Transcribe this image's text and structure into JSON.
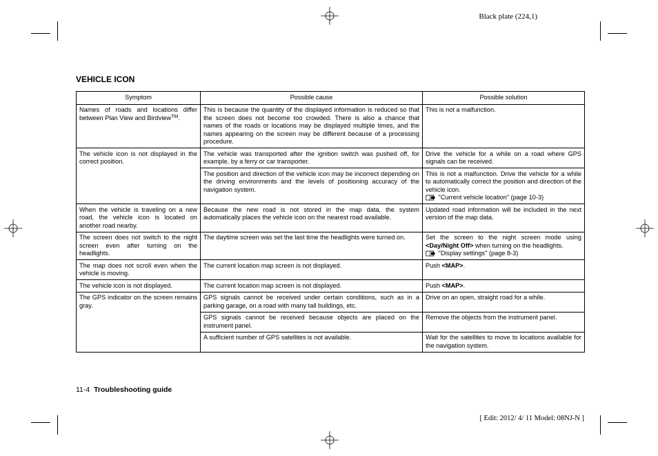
{
  "plate_label": "Black plate (224,1)",
  "section_title": "VEHICLE ICON",
  "table": {
    "headers": [
      "Symptom",
      "Possible cause",
      "Possible solution"
    ],
    "rows": [
      {
        "symptom": "Names of roads and locations differ between Plan View and Birdview™.",
        "cause": "This is because the quantity of the displayed information is reduced so that the screen does not become too crowded. There is also a chance that names of the roads or locations may be displayed multiple times, and the names appearing on the screen may be different because of a processing procedure.",
        "solution": "This is not a malfunction."
      },
      {
        "symptom": "The vehicle icon is not displayed in the correct position.",
        "symptom_rowspan": 2,
        "cause": "The vehicle was transported after the ignition switch was pushed off, for example, by a ferry or car transporter.",
        "solution": "Drive the vehicle for a while on a road where GPS signals can be received."
      },
      {
        "cause": "The position and direction of the vehicle icon may be incorrect depending on the driving environments and the levels of positioning accuracy of the navigation system.",
        "solution": "This is not a malfunction. Drive the vehicle for a while to automatically correct the position and direction of the vehicle icon.",
        "ref": "\"Current vehicle location\" (page 10-3)"
      },
      {
        "symptom": "When the vehicle is traveling on a new road, the vehicle icon is located on another road nearby.",
        "cause": "Because the new road is not stored in the map data, the system automatically places the vehicle icon on the nearest road available.",
        "solution": "Updated road information will be included in the next version of the map data."
      },
      {
        "symptom": "The screen does not switch to the night screen even after turning on the headlights.",
        "cause": "The daytime screen was set the last time the headlights were turned on.",
        "solution_pre": "Set the screen to the night screen mode using ",
        "solution_bold": "<Day/Night Off>",
        "solution_post": " when turning on the head­lights.",
        "ref": "\"Display settings\" (page 8-3)"
      },
      {
        "symptom": "The map does not scroll even when the vehicle is moving.",
        "cause": "The current location map screen is not displayed.",
        "solution_pre": "Push ",
        "solution_bold": "<MAP>",
        "solution_post": "."
      },
      {
        "symptom": "The vehicle icon is not displayed.",
        "cause": "The current location map screen is not displayed.",
        "solution_pre": "Push ",
        "solution_bold": "<MAP>",
        "solution_post": "."
      },
      {
        "symptom": "The GPS indicator on the screen remains gray.",
        "symptom_rowspan": 3,
        "cause": "GPS signals cannot be received under certain conditions, such as in a parking garage, on a road with many tall buildings, etc.",
        "solution": "Drive on an open, straight road for a while."
      },
      {
        "cause": "GPS signals cannot be received because objects are placed on the instrument panel.",
        "solution": "Remove the objects from the instrument panel."
      },
      {
        "cause": "A sufficient number of GPS satellites is not available.",
        "solution": "Wait for the satellites to move to locations available for the navigation system."
      }
    ]
  },
  "footer": {
    "page_num": "11-4",
    "section": "Troubleshooting guide",
    "edit_info": "[ Edit: 2012/ 4/ 11  Model: 08NJ-N ]"
  }
}
